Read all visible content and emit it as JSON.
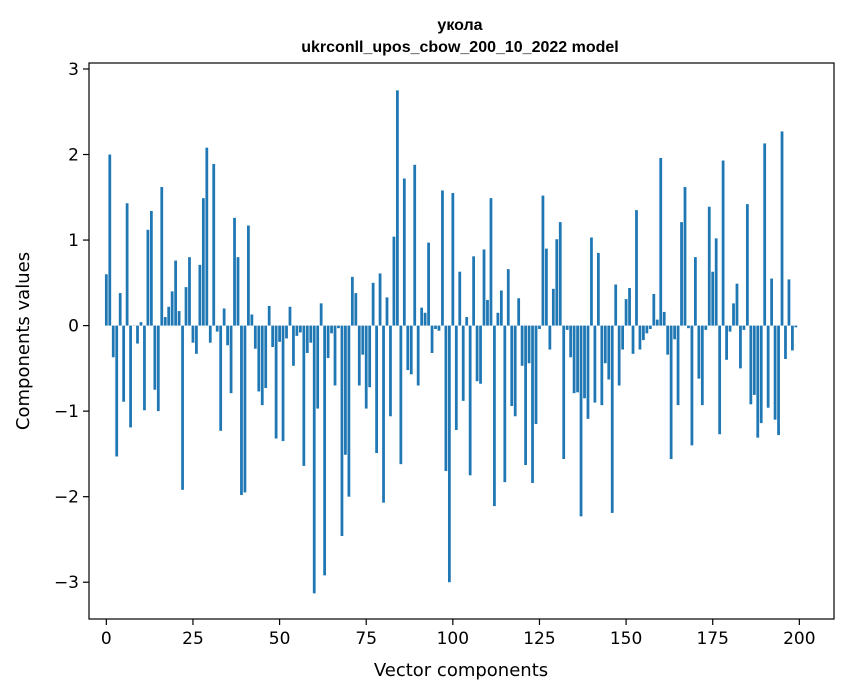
{
  "chart_data": {
    "type": "bar",
    "title_line1": "укола",
    "title_line2": "ukrconll_upos_cbow_200_10_2022 model",
    "xlabel": "Vector components",
    "ylabel": "Components values",
    "xlim": [
      -5,
      210
    ],
    "ylim": [
      -3.43,
      3.07
    ],
    "xticks": [
      0,
      25,
      50,
      75,
      100,
      125,
      150,
      175,
      200
    ],
    "xtick_labels": [
      "0",
      "25",
      "50",
      "75",
      "100",
      "125",
      "150",
      "175",
      "200"
    ],
    "yticks": [
      3,
      2,
      1,
      0,
      -1,
      -2,
      -3
    ],
    "ytick_labels": [
      "3",
      "2",
      "1",
      "0",
      "−1",
      "−2",
      "−3"
    ],
    "bar_color": "#1f77b4",
    "grid": false,
    "legend": "none",
    "values": [
      0.6,
      2.0,
      -0.37,
      -1.53,
      0.38,
      -0.89,
      1.43,
      -1.19,
      0.0,
      -0.21,
      0.04,
      -0.99,
      1.12,
      1.34,
      -0.75,
      -1.0,
      1.62,
      0.1,
      0.22,
      0.4,
      0.76,
      0.17,
      -1.92,
      0.45,
      0.8,
      -0.2,
      -0.33,
      0.71,
      1.49,
      2.08,
      -0.2,
      1.89,
      -0.07,
      -1.23,
      0.2,
      -0.23,
      -0.79,
      1.26,
      0.8,
      -1.98,
      -1.95,
      1.17,
      0.13,
      -0.27,
      -0.77,
      -0.93,
      -0.73,
      0.23,
      -0.25,
      -1.32,
      -0.19,
      -1.35,
      -0.15,
      0.22,
      -0.47,
      -0.12,
      -0.08,
      -1.64,
      -0.32,
      -0.2,
      -3.13,
      -0.97,
      0.26,
      -2.92,
      -0.38,
      -0.09,
      -0.7,
      -0.03,
      -2.46,
      -1.51,
      -2.0,
      0.57,
      0.38,
      -0.7,
      -0.34,
      -0.97,
      -0.72,
      0.5,
      -1.49,
      0.61,
      -2.07,
      0.33,
      -1.06,
      1.04,
      2.75,
      -1.62,
      1.72,
      -0.52,
      -0.57,
      1.88,
      -0.7,
      0.21,
      0.15,
      0.97,
      -0.32,
      -0.04,
      -0.06,
      1.58,
      -1.7,
      -3.0,
      1.55,
      -1.22,
      0.63,
      -0.88,
      0.1,
      -1.75,
      0.81,
      -0.65,
      -0.68,
      0.89,
      0.3,
      1.49,
      -2.11,
      0.15,
      0.41,
      -1.83,
      0.66,
      -0.94,
      -1.06,
      0.32,
      -0.47,
      -1.63,
      -0.44,
      -1.84,
      -1.15,
      -0.04,
      1.52,
      0.9,
      -0.28,
      0.43,
      1.01,
      1.21,
      -1.56,
      -0.05,
      -0.37,
      -0.79,
      -0.78,
      -2.23,
      -0.85,
      -1.09,
      1.03,
      -0.9,
      0.85,
      -0.93,
      -0.44,
      -0.63,
      -2.19,
      0.48,
      -0.7,
      -0.28,
      0.31,
      0.44,
      -0.33,
      1.35,
      -0.28,
      -0.17,
      -0.09,
      -0.04,
      0.37,
      0.07,
      1.96,
      0.16,
      -0.34,
      -1.56,
      -0.16,
      -0.93,
      1.21,
      1.62,
      -0.03,
      -1.4,
      0.8,
      -0.62,
      -0.93,
      -0.05,
      1.39,
      0.63,
      1.02,
      -1.27,
      1.93,
      -0.4,
      -0.07,
      0.26,
      0.49,
      -0.5,
      -0.05,
      1.42,
      -0.92,
      -0.81,
      -1.31,
      -1.14,
      2.13,
      -0.96,
      0.55,
      -1.1,
      -1.28,
      2.27,
      -0.39,
      0.54,
      -0.29,
      -0.02
    ]
  }
}
